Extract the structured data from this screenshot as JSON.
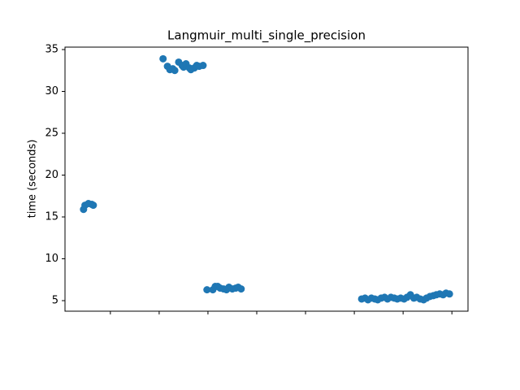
{
  "chart_data": {
    "type": "scatter",
    "title": "Langmuir_multi_single_precision",
    "ylabel": "time (seconds)",
    "color": "#1f77b4",
    "x": [
      0.45,
      0.48,
      0.55,
      0.62,
      0.65,
      2.08,
      2.17,
      2.22,
      2.28,
      2.32,
      2.4,
      2.47,
      2.5,
      2.55,
      2.62,
      2.65,
      2.72,
      2.77,
      2.82,
      2.9,
      2.98,
      3.1,
      3.15,
      3.2,
      3.25,
      3.32,
      3.38,
      3.43,
      3.5,
      3.57,
      3.62,
      3.68,
      6.15,
      6.22,
      6.28,
      6.35,
      6.42,
      6.48,
      6.55,
      6.62,
      6.68,
      6.75,
      6.82,
      6.88,
      6.95,
      7.02,
      7.08,
      7.15,
      7.22,
      7.28,
      7.35,
      7.42,
      7.48,
      7.55,
      7.62,
      7.68,
      7.75,
      7.82,
      7.88,
      7.95
    ],
    "y": [
      15.9,
      16.4,
      16.6,
      16.5,
      16.4,
      33.9,
      33.0,
      32.6,
      32.7,
      32.5,
      33.5,
      33.1,
      32.9,
      33.3,
      32.8,
      32.6,
      32.8,
      33.1,
      33.0,
      33.1,
      6.3,
      6.3,
      6.7,
      6.7,
      6.5,
      6.4,
      6.3,
      6.6,
      6.4,
      6.5,
      6.6,
      6.4,
      5.2,
      5.3,
      5.1,
      5.3,
      5.2,
      5.1,
      5.3,
      5.4,
      5.2,
      5.4,
      5.3,
      5.2,
      5.3,
      5.2,
      5.4,
      5.7,
      5.3,
      5.4,
      5.2,
      5.1,
      5.3,
      5.5,
      5.6,
      5.7,
      5.8,
      5.7,
      5.9,
      5.8
    ],
    "xlim": [
      0.07,
      8.33
    ],
    "xticks": [
      1,
      2,
      3,
      4,
      5,
      6,
      7,
      8
    ],
    "ylim": [
      3.74,
      35.29
    ],
    "yticks": [
      5,
      10,
      15,
      20,
      25,
      30,
      35
    ]
  }
}
